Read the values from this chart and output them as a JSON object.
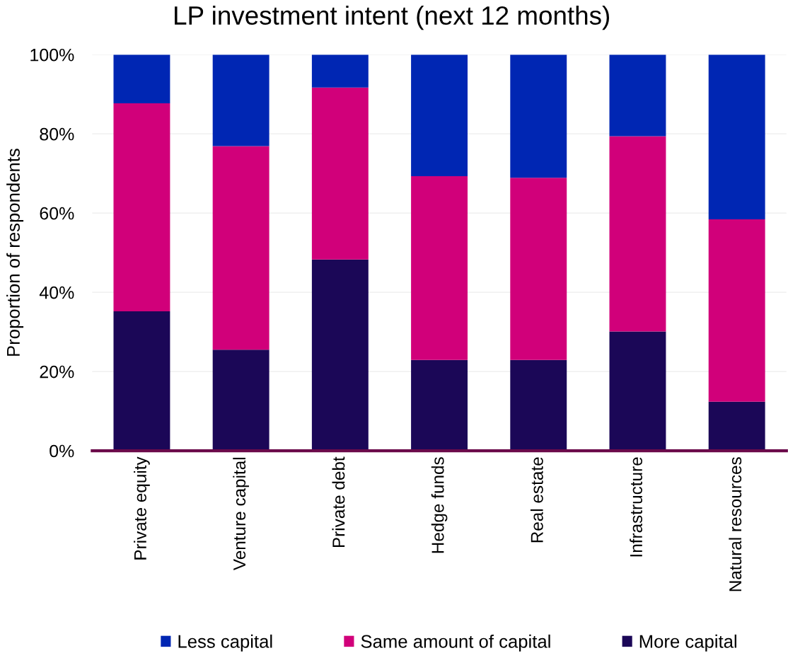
{
  "chart_data": {
    "type": "bar",
    "stacked": true,
    "title": "LP investment intent (next 12 months)",
    "ylabel": "Proportion of respondents",
    "categories": [
      "Private equity",
      "Venture capital",
      "Private debt",
      "Hedge funds",
      "Real estate",
      "Infrastructure",
      "Natural resources"
    ],
    "series": [
      {
        "name": "More capital",
        "color": "#1b0757",
        "values": [
          35.2,
          25.5,
          48.3,
          22.9,
          22.9,
          30.1,
          12.4
        ]
      },
      {
        "name": "Same amount of capital",
        "color": "#d1007a",
        "values": [
          52.5,
          51.4,
          43.4,
          46.4,
          46.0,
          49.3,
          46.0
        ]
      },
      {
        "name": "Less capital",
        "color": "#0026b3",
        "values": [
          12.3,
          23.1,
          8.3,
          30.7,
          31.1,
          20.6,
          41.6
        ]
      }
    ],
    "ylim": [
      0,
      100
    ],
    "yticks": [
      {
        "value": 0,
        "label": "0%"
      },
      {
        "value": 20,
        "label": "20%"
      },
      {
        "value": 40,
        "label": "40%"
      },
      {
        "value": 60,
        "label": "60%"
      },
      {
        "value": 80,
        "label": "80%"
      },
      {
        "value": 100,
        "label": "100%"
      }
    ],
    "grid": "y",
    "legend": "bottom"
  }
}
